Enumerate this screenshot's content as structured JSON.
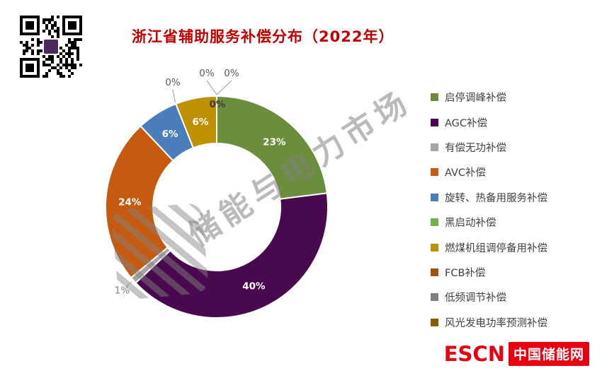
{
  "title": "浙江省辅助服务补偿分布（2022年）",
  "watermark": {
    "text": "储能与电力市场"
  },
  "logo": {
    "escn": "ESCN",
    "site": "中国储能网"
  },
  "colors": {
    "title": "#c00000",
    "escn_red": "#e60012",
    "legend_text": "#404040",
    "outside_label": "#595959",
    "leader_line": "#9a9a9a"
  },
  "chart_data": {
    "type": "pie",
    "subtype": "donut",
    "title": "浙江省辅助服务补偿分布（2022年）",
    "start_angle_deg": 0,
    "direction": "clockwise",
    "legend_position": "right",
    "grid": false,
    "categories": [
      "启停调峰补偿",
      "AGC补偿",
      "有偿无功补偿",
      "AVC补偿",
      "旋转、热备用服务补偿",
      "黑启动补偿",
      "燃煤机组调停备用补偿",
      "FCB补偿",
      "低频调节补偿",
      "风光发电功率预测补偿"
    ],
    "series": [
      {
        "name": "启停调峰补偿",
        "value": 23,
        "label": "23%",
        "color": "#6b8e3d"
      },
      {
        "name": "AGC补偿",
        "value": 40,
        "label": "40%",
        "color": "#48094e"
      },
      {
        "name": "有偿无功补偿",
        "value": 1,
        "label": "1%",
        "color": "#a6a6a6"
      },
      {
        "name": "AVC补偿",
        "value": 24,
        "label": "24%",
        "color": "#c55a11"
      },
      {
        "name": "旋转、热备用服务补偿",
        "value": 6,
        "label": "6%",
        "color": "#4a7ebb"
      },
      {
        "name": "黑启动补偿",
        "value": 0,
        "label": "0%",
        "color": "#74b04a"
      },
      {
        "name": "燃煤机组调停备用补偿",
        "value": 6,
        "label": "6%",
        "color": "#bf9000"
      },
      {
        "name": "FCB补偿",
        "value": 0,
        "label": "0%",
        "color": "#9e5410"
      },
      {
        "name": "低频调节补偿",
        "value": 0,
        "label": "0%",
        "color": "#7f7f7f"
      },
      {
        "name": "风光发电功率预测补偿",
        "value": 0,
        "label": "0%",
        "color": "#7f6000"
      }
    ]
  }
}
